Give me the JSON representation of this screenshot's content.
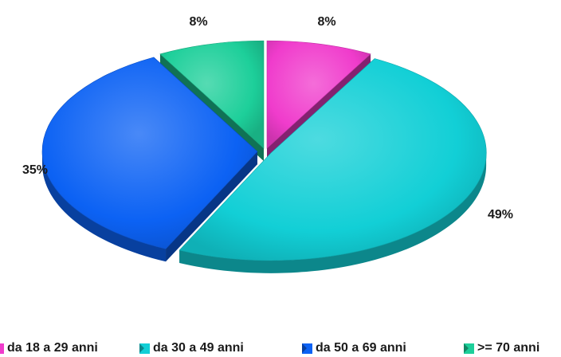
{
  "chart_data": {
    "type": "pie",
    "style": "3d-exploded",
    "categories": [
      "da 18 a 29 anni",
      "da 30 a 49 anni",
      "da 50 a 69 anni",
      ">= 70 anni"
    ],
    "values": [
      8,
      49,
      35,
      8
    ],
    "labels": [
      "8%",
      "49%",
      "35%",
      "8%"
    ],
    "colors": [
      "#f03ccc",
      "#12cfd6",
      "#0c62f4",
      "#1dcf9a"
    ],
    "legend_position": "bottom"
  }
}
